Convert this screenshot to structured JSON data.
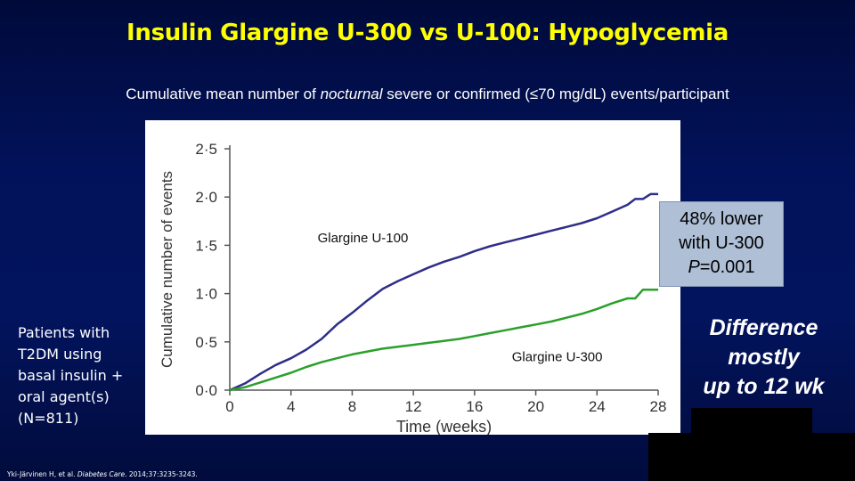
{
  "slide": {
    "title": "Insulin Glargine U-300 vs U-100: Hypoglycemia",
    "subtitle_before": "Cumulative mean number of ",
    "subtitle_italic": "nocturnal",
    "subtitle_after": " severe or confirmed (≤70 mg/dL) events/participant",
    "callout_line1": "48% lower",
    "callout_line2": "with U-300",
    "callout_p_label": "P",
    "callout_p_value": "=0.001",
    "difference_line1": "Difference",
    "difference_line2": "mostly",
    "difference_line3": "up to 12 wk",
    "patients_text": "Patients with T2DM using basal insulin + oral agent(s) (N=811)",
    "citation_before": "Yki-Järvinen H, et al. ",
    "citation_journal": "Diabetes Care",
    "citation_after": ". 2014;37:3235-3243."
  },
  "chart_data": {
    "type": "line",
    "xlabel": "Time (weeks)",
    "ylabel": "Cumulative number of events",
    "xlim": [
      0,
      28
    ],
    "ylim": [
      0,
      2.5
    ],
    "x_ticks": [
      0,
      4,
      8,
      12,
      16,
      20,
      24,
      28
    ],
    "x_tick_labels": [
      "0",
      "4",
      "8",
      "12",
      "16",
      "20",
      "24",
      "28"
    ],
    "y_ticks": [
      0,
      0.5,
      1.0,
      1.5,
      2.0,
      2.5
    ],
    "y_tick_labels": [
      "0·0",
      "0·5",
      "1·0",
      "1·5",
      "2·0",
      "2·5"
    ],
    "grid": false,
    "series": [
      {
        "name": "Glargine U-100",
        "color": "#2e2e88",
        "x": [
          0,
          1,
          2,
          3,
          4,
          5,
          6,
          7,
          8,
          9,
          10,
          11,
          12,
          13,
          14,
          15,
          16,
          17,
          18,
          19,
          20,
          21,
          22,
          23,
          24,
          25,
          26,
          26.5,
          27,
          27.5,
          28
        ],
        "y": [
          0,
          0.07,
          0.17,
          0.26,
          0.33,
          0.42,
          0.53,
          0.68,
          0.8,
          0.93,
          1.05,
          1.13,
          1.2,
          1.27,
          1.33,
          1.38,
          1.44,
          1.49,
          1.53,
          1.57,
          1.61,
          1.65,
          1.69,
          1.73,
          1.78,
          1.85,
          1.92,
          1.98,
          1.98,
          2.03,
          2.03
        ]
      },
      {
        "name": "Glargine U-300",
        "color": "#2aa02a",
        "x": [
          0,
          1,
          2,
          3,
          4,
          5,
          6,
          7,
          8,
          9,
          10,
          11,
          12,
          13,
          14,
          15,
          16,
          17,
          18,
          19,
          20,
          21,
          22,
          23,
          24,
          25,
          26,
          26.5,
          27,
          27.5,
          28
        ],
        "y": [
          0,
          0.03,
          0.08,
          0.13,
          0.18,
          0.24,
          0.29,
          0.33,
          0.37,
          0.4,
          0.43,
          0.45,
          0.47,
          0.49,
          0.51,
          0.53,
          0.56,
          0.59,
          0.62,
          0.65,
          0.68,
          0.71,
          0.75,
          0.79,
          0.84,
          0.9,
          0.95,
          0.95,
          1.04,
          1.04,
          1.04
        ]
      }
    ],
    "annotations": [
      {
        "text": "Glargine U-100",
        "series": "Glargine U-100"
      },
      {
        "text": "Glargine U-300",
        "series": "Glargine U-300"
      }
    ]
  }
}
